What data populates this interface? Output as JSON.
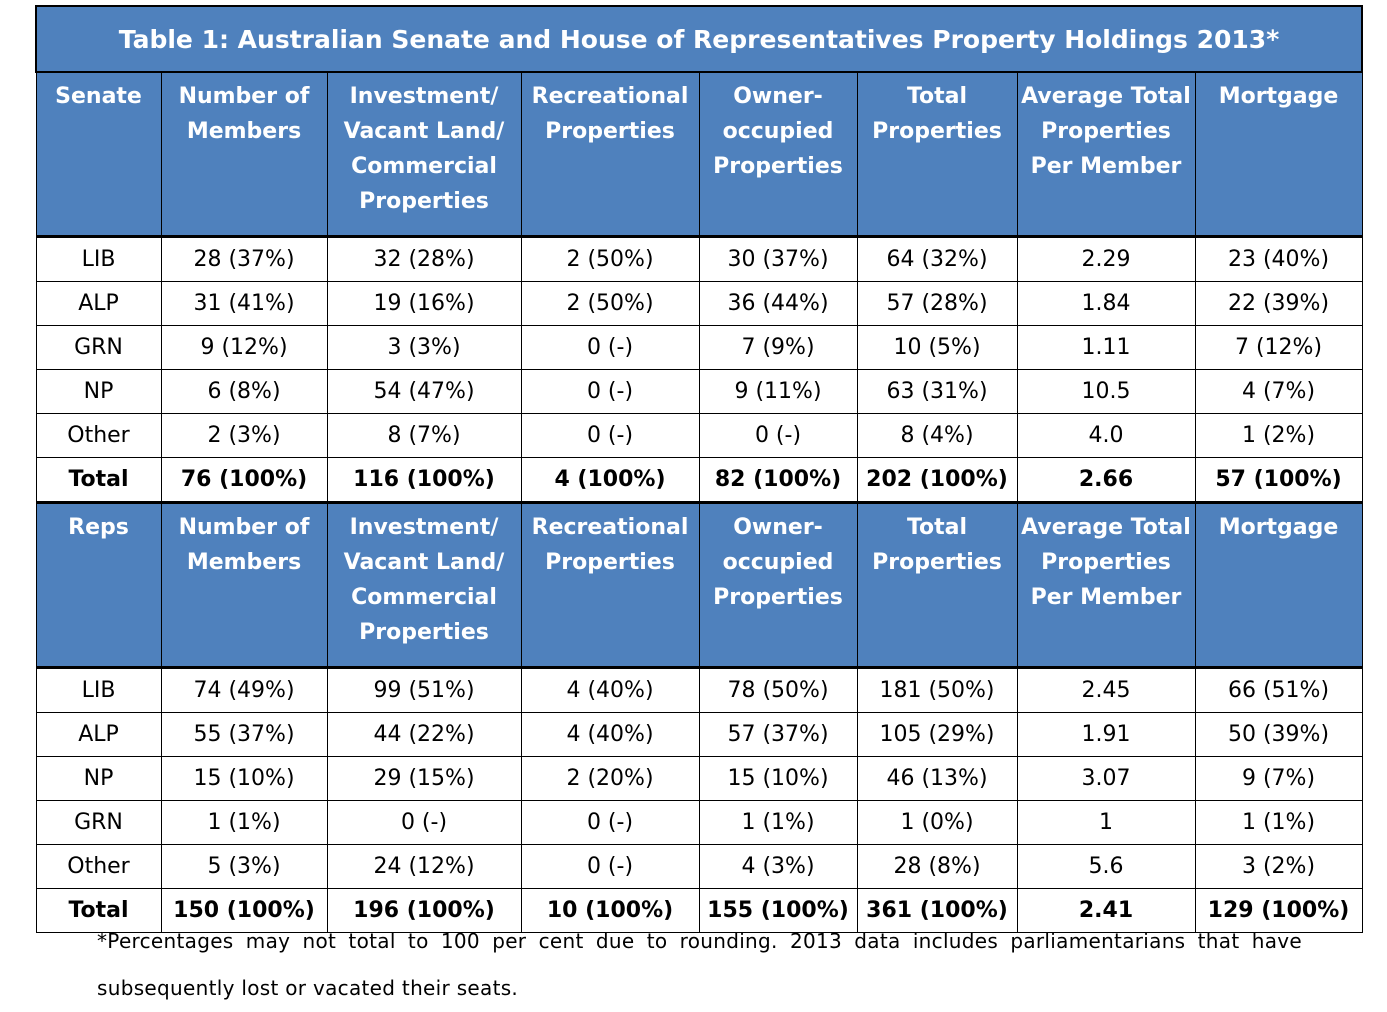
{
  "title": "Table 1: Australian Senate and House of Representatives Property Holdings 2013*",
  "senate": {
    "headers": [
      "Senate",
      "Number of Members",
      "Investment/ Vacant Land/ Commercial Properties",
      "Recreational Properties",
      "Owner-occupied Properties",
      "Total Properties",
      "Average Total Properties Per Member",
      "Mortgage"
    ],
    "rows": [
      [
        "LIB",
        "28 (37%)",
        "32 (28%)",
        "2 (50%)",
        "30 (37%)",
        "64 (32%)",
        "2.29",
        "23 (40%)"
      ],
      [
        "ALP",
        "31 (41%)",
        "19 (16%)",
        "2 (50%)",
        "36 (44%)",
        "57 (28%)",
        "1.84",
        "22 (39%)"
      ],
      [
        "GRN",
        "9 (12%)",
        "3 (3%)",
        "0 (-)",
        "7 (9%)",
        "10 (5%)",
        "1.11",
        "7 (12%)"
      ],
      [
        "NP",
        "6 (8%)",
        "54 (47%)",
        "0 (-)",
        "9 (11%)",
        "63 (31%)",
        "10.5",
        "4 (7%)"
      ],
      [
        "Other",
        "2 (3%)",
        "8 (7%)",
        "0 (-)",
        "0 (-)",
        "8 (4%)",
        "4.0",
        "1 (2%)"
      ]
    ],
    "total": [
      "Total",
      "76 (100%)",
      "116 (100%)",
      "4 (100%)",
      "82 (100%)",
      "202 (100%)",
      "2.66",
      "57 (100%)"
    ]
  },
  "reps": {
    "headers": [
      "Reps",
      "Number of Members",
      "Investment/ Vacant Land/ Commercial Properties",
      "Recreational Properties",
      "Owner-occupied Properties",
      "Total Properties",
      "Average Total Properties Per Member",
      "Mortgage"
    ],
    "rows": [
      [
        "LIB",
        "74 (49%)",
        "99 (51%)",
        "4 (40%)",
        "78 (50%)",
        "181 (50%)",
        "2.45",
        "66 (51%)"
      ],
      [
        "ALP",
        "55 (37%)",
        "44 (22%)",
        "4 (40%)",
        "57 (37%)",
        "105 (29%)",
        "1.91",
        "50 (39%)"
      ],
      [
        "NP",
        "15 (10%)",
        "29 (15%)",
        "2 (20%)",
        "15 (10%)",
        "46 (13%)",
        "3.07",
        "9 (7%)"
      ],
      [
        "GRN",
        "1 (1%)",
        "0 (-)",
        "0 (-)",
        "1 (1%)",
        "1 (0%)",
        "1",
        "1 (1%)"
      ],
      [
        "Other",
        "5 (3%)",
        "24 (12%)",
        "0 (-)",
        "4 (3%)",
        "28 (8%)",
        "5.6",
        "3 (2%)"
      ]
    ],
    "total": [
      "Total",
      "150 (100%)",
      "196 (100%)",
      "10 (100%)",
      "155 (100%)",
      "361 (100%)",
      "2.41",
      "129 (100%)"
    ]
  },
  "footnote": "*Percentages may not total to 100 per cent due to rounding. 2013 data includes parliamentarians that have subsequently lost or vacated their seats.",
  "colors": {
    "header_bg": "#4f81bd",
    "header_text": "#ffffff"
  }
}
